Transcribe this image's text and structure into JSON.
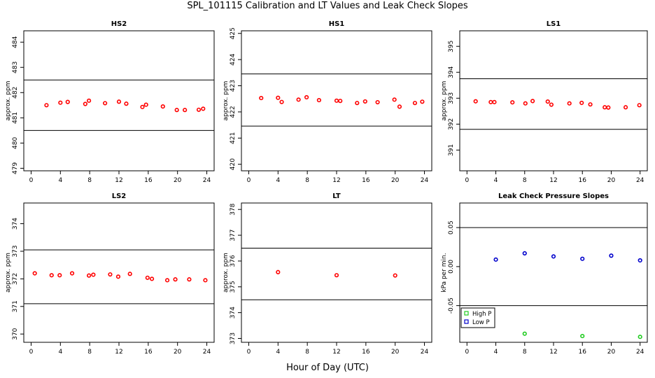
{
  "figure": {
    "title": "SPL_101115  Calibration and LT Values and Leak Check Slopes",
    "xlabel": "Hour of Day (UTC)"
  },
  "chart_data": [
    {
      "type": "scatter",
      "title": "HS2",
      "ylabel": "approx. ppm",
      "xlim": [
        -1,
        25
      ],
      "ylim": [
        478.9,
        484.45
      ],
      "xticks": [
        0,
        4,
        8,
        12,
        16,
        20,
        24
      ],
      "yticks": [
        479,
        480,
        481,
        482,
        483,
        484
      ],
      "hlines": [
        480.5,
        482.5
      ],
      "point_color": "#ff0000",
      "series": [
        {
          "x": [
            2.1,
            4.0,
            5.0,
            7.4,
            7.9,
            10.1,
            12.0,
            13.0,
            15.2,
            15.7,
            18.0,
            19.9,
            21.0,
            22.9,
            23.5
          ],
          "y": [
            481.5,
            481.6,
            481.63,
            481.55,
            481.68,
            481.58,
            481.64,
            481.56,
            481.43,
            481.52,
            481.45,
            481.31,
            481.31,
            481.32,
            481.36
          ]
        }
      ]
    },
    {
      "type": "scatter",
      "title": "HS1",
      "ylabel": "approx. ppm",
      "xlim": [
        -1,
        25
      ],
      "ylim": [
        419.75,
        425.1
      ],
      "xticks": [
        0,
        4,
        8,
        12,
        16,
        20,
        24
      ],
      "yticks": [
        420,
        421,
        422,
        423,
        424,
        425
      ],
      "hlines": [
        421.46,
        423.45
      ],
      "point_color": "#ff0000",
      "series": [
        {
          "x": [
            1.7,
            4.0,
            4.5,
            6.8,
            7.9,
            9.6,
            12.0,
            12.5,
            14.8,
            15.9,
            17.6,
            19.9,
            20.6,
            22.7,
            23.7
          ],
          "y": [
            422.53,
            422.54,
            422.38,
            422.47,
            422.56,
            422.45,
            422.43,
            422.42,
            422.34,
            422.4,
            422.37,
            422.47,
            422.2,
            422.34,
            422.39
          ]
        }
      ]
    },
    {
      "type": "scatter",
      "title": "LS1",
      "ylabel": "approx. ppm",
      "xlim": [
        -1,
        25
      ],
      "ylim": [
        390.2,
        395.6
      ],
      "xticks": [
        0,
        4,
        8,
        12,
        16,
        20,
        24
      ],
      "yticks": [
        391,
        392,
        393,
        394,
        395
      ],
      "hlines": [
        391.8,
        393.75
      ],
      "point_color": "#ff0000",
      "series": [
        {
          "x": [
            1.2,
            3.3,
            3.8,
            6.3,
            8.1,
            9.1,
            11.2,
            11.7,
            14.2,
            15.9,
            17.1,
            19.1,
            19.6,
            22.0,
            23.9
          ],
          "y": [
            392.88,
            392.85,
            392.85,
            392.84,
            392.8,
            392.89,
            392.87,
            392.75,
            392.8,
            392.82,
            392.76,
            392.65,
            392.64,
            392.65,
            392.73
          ]
        }
      ]
    },
    {
      "type": "scatter",
      "title": "LS2",
      "ylabel": "approx. ppm",
      "xlim": [
        -1,
        25
      ],
      "ylim": [
        369.7,
        374.75
      ],
      "xticks": [
        0,
        4,
        8,
        12,
        16,
        20,
        24
      ],
      "yticks": [
        370,
        371,
        372,
        373,
        374
      ],
      "hlines": [
        371.1,
        373.05
      ],
      "point_color": "#ff0000",
      "series": [
        {
          "x": [
            0.5,
            2.8,
            3.9,
            5.6,
            7.9,
            8.5,
            10.8,
            11.9,
            13.5,
            15.9,
            16.5,
            18.6,
            19.7,
            21.6,
            23.8
          ],
          "y": [
            372.2,
            372.13,
            372.13,
            372.2,
            372.12,
            372.15,
            372.16,
            372.08,
            372.18,
            372.04,
            372.0,
            371.95,
            371.98,
            371.98,
            371.95
          ]
        }
      ]
    },
    {
      "type": "scatter",
      "title": "LT",
      "ylabel": "approx. ppm",
      "xlim": [
        -1,
        25
      ],
      "ylim": [
        372.85,
        378.25
      ],
      "xticks": [
        0,
        4,
        8,
        12,
        16,
        20,
        24
      ],
      "yticks": [
        373,
        374,
        375,
        376,
        377,
        378
      ],
      "hlines": [
        374.5,
        376.5
      ],
      "point_color": "#ff0000",
      "series": [
        {
          "x": [
            4.0,
            12.0,
            20.0
          ],
          "y": [
            375.57,
            375.45,
            375.44
          ]
        }
      ]
    },
    {
      "type": "scatter",
      "title": "Leak Check Pressure Slopes",
      "ylabel": "kPa per min.",
      "xlim": [
        -1,
        25
      ],
      "ylim": [
        -0.097,
        0.0815
      ],
      "xticks": [
        0,
        4,
        8,
        12,
        16,
        20,
        24
      ],
      "yticks": [
        -0.05,
        0.0,
        0.05
      ],
      "ytick_labels": [
        "-0.05",
        "0.00",
        "0.05"
      ],
      "hlines": [
        -0.05,
        0.05
      ],
      "legend": {
        "position": "bottom-left"
      },
      "series": [
        {
          "name": "High P",
          "color": "#22cc22",
          "x": [
            8,
            16,
            24
          ],
          "y": [
            -0.086,
            -0.089,
            -0.09
          ]
        },
        {
          "name": "Low P",
          "color": "#0000cc",
          "x": [
            4,
            8,
            12,
            16,
            20,
            24
          ],
          "y": [
            0.009,
            0.017,
            0.013,
            0.01,
            0.014,
            0.008
          ]
        }
      ]
    }
  ]
}
